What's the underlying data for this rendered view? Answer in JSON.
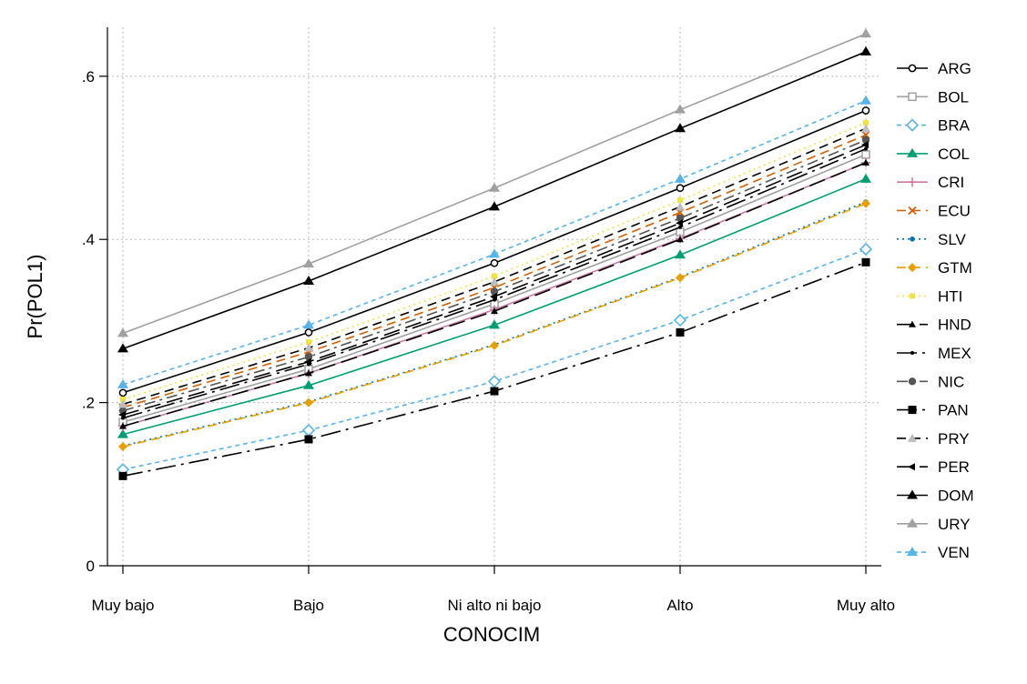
{
  "chart_data": {
    "type": "line",
    "categories": [
      "Muy bajo",
      "Bajo",
      "Ni alto ni bajo",
      "Alto",
      "Muy alto"
    ],
    "xlabel": "CONOCIM",
    "ylabel": "Pr(POL1)",
    "ylim": [
      0,
      0.66
    ],
    "yticks": [
      0,
      0.2,
      0.4,
      0.6
    ],
    "ytick_labels": [
      "0",
      ".2",
      ".4",
      ".6"
    ],
    "grid": true,
    "legend_position": "right",
    "series": [
      {
        "name": "ARG",
        "values": [
          0.212,
          0.286,
          0.371,
          0.463,
          0.558
        ],
        "color": "#000000",
        "dash": "solid",
        "marker": "circle-open"
      },
      {
        "name": "BOL",
        "values": [
          0.176,
          0.241,
          0.321,
          0.409,
          0.504
        ],
        "color": "#a0a0a0",
        "dash": "solid",
        "marker": "square-open"
      },
      {
        "name": "BRA",
        "values": [
          0.118,
          0.166,
          0.226,
          0.301,
          0.388
        ],
        "color": "#56b4e9",
        "dash": "shortdash",
        "marker": "diamond-open"
      },
      {
        "name": "COL",
        "values": [
          0.161,
          0.221,
          0.295,
          0.381,
          0.474
        ],
        "color": "#009e73",
        "dash": "solid",
        "marker": "triangle"
      },
      {
        "name": "CRI",
        "values": [
          0.171,
          0.236,
          0.314,
          0.401,
          0.494
        ],
        "color": "#cc79a7",
        "dash": "solid",
        "marker": "plus"
      },
      {
        "name": "ECU",
        "values": [
          0.194,
          0.262,
          0.341,
          0.433,
          0.528
        ],
        "color": "#d55e00",
        "dash": "dash",
        "marker": "x"
      },
      {
        "name": "SLV",
        "values": [
          0.147,
          0.201,
          0.271,
          0.354,
          0.446
        ],
        "color": "#0072b2",
        "dash": "dot",
        "marker": "dot"
      },
      {
        "name": "GTM",
        "values": [
          0.146,
          0.2,
          0.27,
          0.353,
          0.444
        ],
        "color": "#e69f00",
        "dash": "dash",
        "marker": "diamond"
      },
      {
        "name": "HTI",
        "values": [
          0.204,
          0.274,
          0.355,
          0.448,
          0.543
        ],
        "color": "#f0e442",
        "dash": "dot",
        "marker": "square-small"
      },
      {
        "name": "HND",
        "values": [
          0.171,
          0.236,
          0.312,
          0.4,
          0.494
        ],
        "color": "#000000",
        "dash": "longdash",
        "marker": "triangle-small"
      },
      {
        "name": "MEX",
        "values": [
          0.181,
          0.247,
          0.326,
          0.415,
          0.511
        ],
        "color": "#000000",
        "dash": "longdashdot",
        "marker": "dot-small"
      },
      {
        "name": "NIC",
        "values": [
          0.19,
          0.256,
          0.336,
          0.426,
          0.522
        ],
        "color": "#555555",
        "dash": "dashdot",
        "marker": "circle"
      },
      {
        "name": "PAN",
        "values": [
          0.11,
          0.155,
          0.214,
          0.286,
          0.372
        ],
        "color": "#000000",
        "dash": "longdashdot",
        "marker": "square"
      },
      {
        "name": "PRY",
        "values": [
          0.198,
          0.267,
          0.348,
          0.44,
          0.536
        ],
        "color": "#000000",
        "dash": "dash",
        "marker": "triangle-light"
      },
      {
        "name": "PER",
        "values": [
          0.185,
          0.25,
          0.33,
          0.42,
          0.516
        ],
        "color": "#000000",
        "dash": "longdash",
        "marker": "arrow"
      },
      {
        "name": "DOM",
        "values": [
          0.266,
          0.349,
          0.44,
          0.536,
          0.63
        ],
        "color": "#000000",
        "dash": "solid",
        "marker": "triangle"
      },
      {
        "name": "URY",
        "values": [
          0.285,
          0.37,
          0.463,
          0.559,
          0.652
        ],
        "color": "#a0a0a0",
        "dash": "solid",
        "marker": "triangle"
      },
      {
        "name": "VEN",
        "values": [
          0.222,
          0.295,
          0.382,
          0.474,
          0.57
        ],
        "color": "#56b4e9",
        "dash": "shortdash",
        "marker": "triangle"
      }
    ]
  }
}
